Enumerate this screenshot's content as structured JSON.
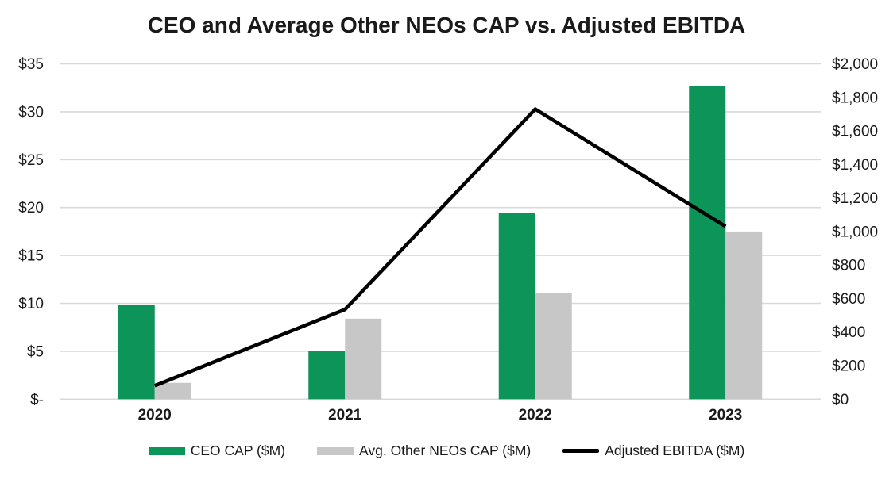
{
  "chart_data": {
    "type": "bar",
    "subtype": "combo-bar-line",
    "title": "CEO and Average Other NEOs CAP vs. Adjusted EBITDA",
    "categories": [
      "2020",
      "2021",
      "2022",
      "2023"
    ],
    "series": [
      {
        "name": "CEO CAP ($M)",
        "render": "bar",
        "axis": "left",
        "color": "#0D9459",
        "values": [
          9.8,
          5.0,
          19.4,
          32.7
        ]
      },
      {
        "name": "Avg. Other NEOs CAP ($M)",
        "render": "bar",
        "axis": "left",
        "color": "#C7C7C7",
        "values": [
          1.7,
          8.4,
          11.1,
          17.5
        ]
      },
      {
        "name": "Adjusted EBITDA ($M)",
        "render": "line",
        "axis": "right",
        "color": "#000000",
        "values": [
          80,
          535,
          1730,
          1030
        ]
      }
    ],
    "left_axis": {
      "min": 0,
      "max": 35,
      "tick_values": [
        0,
        5,
        10,
        15,
        20,
        25,
        30,
        35
      ],
      "tick_labels": [
        "$-",
        "$5",
        "$10",
        "$15",
        "$20",
        "$25",
        "$30",
        "$35"
      ]
    },
    "right_axis": {
      "min": 0,
      "max": 2000,
      "tick_values": [
        0,
        200,
        400,
        600,
        800,
        1000,
        1200,
        1400,
        1600,
        1800,
        2000
      ],
      "tick_labels": [
        "$0",
        "$200",
        "$400",
        "$600",
        "$800",
        "$1,000",
        "$1,200",
        "$1,400",
        "$1,600",
        "$1,800",
        "$2,000"
      ]
    },
    "grid": true,
    "legend_position": "bottom",
    "colors": {
      "gridline": "#D9D9D9",
      "text": "#1A1A1A"
    }
  }
}
